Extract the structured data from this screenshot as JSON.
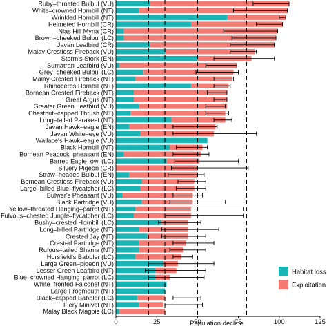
{
  "chart_data": {
    "type": "bar",
    "orientation": "horizontal",
    "stacked": true,
    "xlabel": "Population decline",
    "xlim": [
      0,
      125
    ],
    "xticks": [
      0,
      25,
      50,
      75,
      100,
      125
    ],
    "reference_lines": [
      20,
      30,
      50,
      80
    ],
    "legend": {
      "position": "bottom-right",
      "entries": [
        "Habitat loss",
        "Exploitation"
      ]
    },
    "colors": {
      "habitat": "#1bb4b4",
      "exploitation": "#f47b73",
      "errorbar": "#000000",
      "refline": "#000000"
    },
    "series": [
      {
        "name": "Habitat loss",
        "key": "habitat"
      },
      {
        "name": "Exploitation",
        "key": "exploitation"
      }
    ],
    "categories": [
      "Ruby–throated Bulbul (VU)",
      "White–crowned Hornbill (NT)",
      "Wrinkled Hornbill (NT)",
      "Helmeted Hornbill (CR)",
      "Nias Hill Myna (CR)",
      "Brown–cheeked Bulbul (LC)",
      "Javan Leafbird (CR)",
      "Malay Crestless Fireback (VU)",
      "Storm's Stork (EN)",
      "Sumatran Leafbird (VU)",
      "Grey–cheeked Bulbul (LC)",
      "Malay Crested Fireback (NT)",
      "Rhinoceros Hornbill (NT)",
      "Bornean Crested Fireback (NT)",
      "Great Argus (NT)",
      "Greater Green Leafbird (VU)",
      "Chestnut–capped Thrush (NT)",
      "Long–tailed Parakeet (NT)",
      "Javan Hawk–eagle (EN)",
      "Javan White–eye (VU)",
      "Wallace's Hawk–eagle (VU)",
      "Black Hornbill (NT)",
      "Bornean Peacock–pheasant (EN)",
      "Barred Eagle–owl (LC)",
      "Silvery Pigeon (CR)",
      "Straw–headed Bulbul (EN)",
      "Bornean Crestless Fireback (VU)",
      "Large–billed Blue–flycatcher (LC)",
      "Bulwer's Pheasant (VU)",
      "Black Partridge (VU)",
      "Yellow–throated Hanging–parrot (NT)",
      "Fulvous–chested Jungle–flycatcher (LC)",
      "Bushy–crested Hornbill (LC)",
      "Long–billed Partridge (NT)",
      "Crested Jay (NT)",
      "Crested Partridge (NT)",
      "Rufous–tailed Shama (NT)",
      "Horsfield's Babbler (LC)",
      "Large Green–pigeon (VU)",
      "Lesser Green Leafbird (NT)",
      "Blue–crowned Hanging–parrot (LC)",
      "White–fronted Falconet (NT)",
      "Large Frogmouth (NT)",
      "Black–capped Babbler (LC)",
      "Fiery Minivet (NT)",
      "Malay Black Magpie (LC)"
    ],
    "habitat": [
      21,
      14,
      68,
      46,
      5,
      5,
      21,
      30,
      50,
      2,
      17,
      12,
      46,
      11,
      11,
      14,
      9,
      34,
      8,
      15,
      56,
      33,
      5,
      31,
      0,
      8,
      16,
      15,
      4,
      16,
      12,
      11,
      28,
      14,
      19,
      14,
      14,
      12,
      29,
      24,
      24,
      31,
      30,
      13,
      14,
      2
    ],
    "exploitation": [
      85,
      91,
      36,
      56,
      94,
      93,
      76,
      55,
      33,
      72,
      55,
      59,
      23,
      57,
      57,
      54,
      58,
      33,
      53,
      45,
      0,
      20,
      47,
      20,
      50,
      42,
      32,
      33,
      43,
      31,
      34,
      35,
      16,
      30,
      25,
      29,
      27,
      28,
      9,
      13,
      9,
      0,
      0,
      17,
      15,
      28
    ],
    "error_upper": [
      106,
      105,
      104,
      102,
      99,
      98,
      97,
      86,
      97,
      74,
      75,
      72,
      70,
      68,
      68,
      67,
      69,
      71,
      62,
      86,
      62,
      56,
      57,
      75,
      81,
      54,
      55,
      55,
      53,
      67,
      78,
      78,
      52,
      63,
      55,
      60,
      55,
      47,
      60,
      55,
      54,
      0,
      0,
      52,
      53,
      0
    ],
    "error_lower": [
      84,
      72,
      100,
      86,
      66,
      71,
      70,
      70,
      60,
      55,
      49,
      60,
      60,
      56,
      60,
      55,
      55,
      60,
      35,
      35,
      0,
      37,
      35,
      36,
      34,
      32,
      38,
      37,
      35,
      33,
      30,
      30,
      26,
      28,
      28,
      35,
      33,
      35,
      20,
      18,
      20,
      0,
      0,
      35,
      30,
      0
    ]
  }
}
